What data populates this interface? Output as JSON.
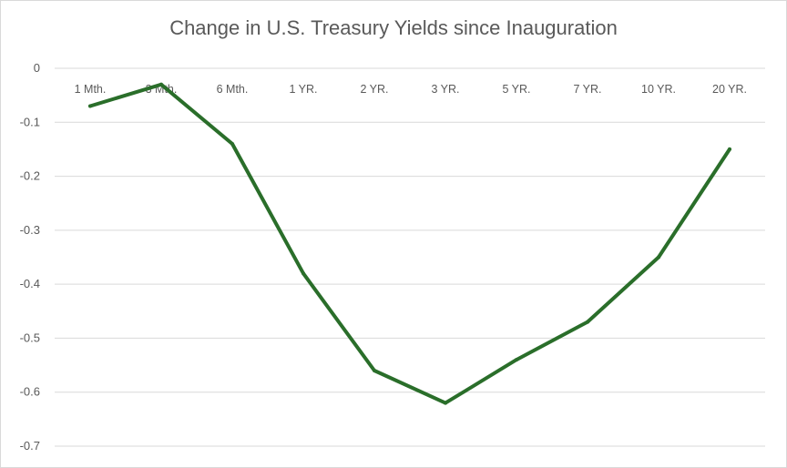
{
  "chart_data": {
    "type": "line",
    "title": "Change in U.S. Treasury Yields since Inauguration",
    "xlabel": "",
    "ylabel": "",
    "categories": [
      "1 Mth.",
      "3 Mth.",
      "6 Mth.",
      "1 YR.",
      "2 YR.",
      "3 YR.",
      "5 YR.",
      "7 YR.",
      "10 YR.",
      "20 YR."
    ],
    "series": [
      {
        "values": [
          -0.07,
          -0.03,
          -0.14,
          -0.38,
          -0.56,
          -0.62,
          -0.54,
          -0.47,
          -0.35,
          -0.15
        ]
      }
    ],
    "ylim": [
      -0.7,
      0
    ],
    "yticks": [
      0,
      -0.1,
      -0.2,
      -0.3,
      -0.4,
      -0.5,
      -0.6,
      -0.7
    ],
    "ytick_labels": [
      "0",
      "-0.1",
      "-0.2",
      "-0.3",
      "-0.4",
      "-0.5",
      "-0.6",
      "-0.7"
    ],
    "grid": true,
    "x_axis_position": "top",
    "line_color": "#2a6e2a",
    "grid_color": "#d9d9d9",
    "text_color": "#595959"
  }
}
